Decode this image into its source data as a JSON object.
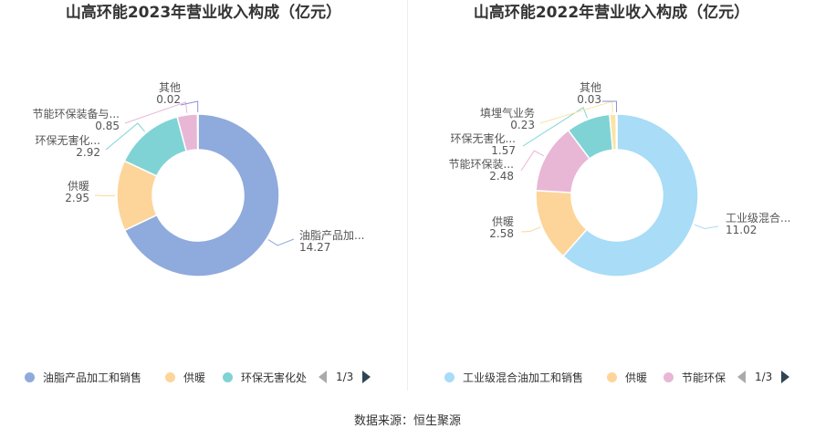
{
  "source": "数据来源：恒生聚源",
  "chart_data": [
    {
      "type": "pie",
      "donut": true,
      "title": "山高环能2023年营业收入构成（亿元）",
      "slices": [
        {
          "label": "油脂产品加...",
          "value": 14.27,
          "color": "#8faadc"
        },
        {
          "label": "供暖",
          "value": 2.95,
          "color": "#fdd59a"
        },
        {
          "label": "环保无害化...",
          "value": 2.92,
          "color": "#7fd3d5"
        },
        {
          "label": "节能环保装备与...",
          "value": 0.85,
          "color": "#e8b7d6"
        },
        {
          "label": "其他",
          "value": 0.02,
          "color": "#8b8fde"
        }
      ],
      "legend": {
        "placement": "bottom",
        "items": [
          {
            "label": "油脂产品加工和销售",
            "color": "#8faadc"
          },
          {
            "label": "供暖",
            "color": "#fdd59a"
          },
          {
            "label": "环保无害化处",
            "color": "#7fd3d5"
          }
        ],
        "page": "1/3"
      }
    },
    {
      "type": "pie",
      "donut": true,
      "title": "山高环能2022年营业收入构成（亿元）",
      "slices": [
        {
          "label": "工业级混合...",
          "value": 11.02,
          "color": "#a8dcf7"
        },
        {
          "label": "供暖",
          "value": 2.58,
          "color": "#fdd59a"
        },
        {
          "label": "节能环保装...",
          "value": 2.48,
          "color": "#e8b7d6"
        },
        {
          "label": "环保无害化...",
          "value": 1.57,
          "color": "#7fd3d5"
        },
        {
          "label": "填埋气业务",
          "value": 0.23,
          "color": "#fbe3a6"
        },
        {
          "label": "其他",
          "value": 0.03,
          "color": "#8b8fde"
        }
      ],
      "legend": {
        "placement": "bottom",
        "items": [
          {
            "label": "工业级混合油加工和销售",
            "color": "#a8dcf7"
          },
          {
            "label": "供暖",
            "color": "#fdd59a"
          },
          {
            "label": "节能环保",
            "color": "#e8b7d6"
          }
        ],
        "page": "1/3"
      }
    }
  ]
}
